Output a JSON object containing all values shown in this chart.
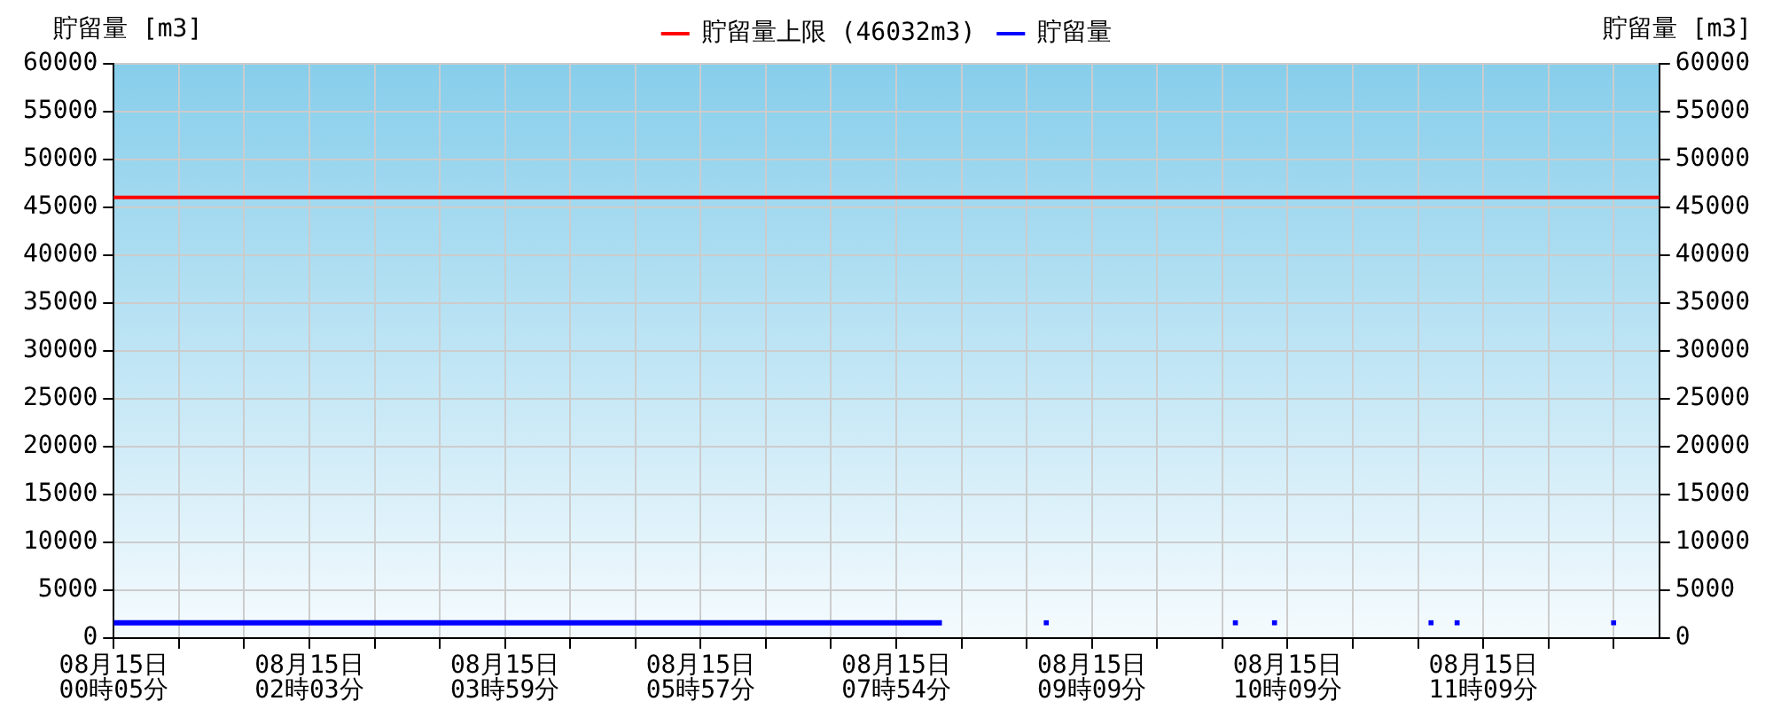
{
  "chart_data": {
    "type": "line",
    "categories": [
      "08月15日\n00時05分",
      null,
      null,
      null,
      null,
      null,
      null,
      null,
      null,
      null,
      null,
      null,
      null,
      null,
      null,
      null,
      null,
      null,
      null,
      null,
      null,
      null,
      null,
      null,
      null,
      null,
      null,
      null,
      null,
      null,
      "08月15日\n02時03分",
      null,
      null,
      null,
      null,
      null,
      null,
      null,
      null,
      null,
      null,
      null,
      null,
      null,
      null,
      null,
      null,
      null,
      null,
      null,
      null,
      null,
      null,
      null,
      null,
      null,
      null,
      null,
      null,
      null,
      "08月15日\n03時59分",
      null,
      null,
      null,
      null,
      null,
      null,
      null,
      null,
      null,
      null,
      null,
      null,
      null,
      null,
      null,
      null,
      null,
      null,
      null,
      null,
      null,
      null,
      null,
      null,
      null,
      null,
      null,
      null,
      null,
      "08月15日\n05時57分",
      null,
      null,
      null,
      null,
      null,
      null,
      null,
      null,
      null,
      null,
      null,
      null,
      null,
      null,
      null,
      null,
      null,
      null,
      null,
      null,
      null,
      null,
      null,
      null,
      null,
      null,
      null,
      null,
      null,
      "08月15日\n07時54分",
      null,
      null,
      null,
      null,
      null,
      null,
      null,
      null,
      null,
      null,
      null,
      null,
      null,
      null,
      null,
      null,
      null,
      null,
      null,
      null,
      null,
      null,
      null,
      null,
      null,
      null,
      null,
      null,
      null,
      "08月15日\n09時09分",
      null,
      null,
      null,
      null,
      null,
      null,
      null,
      null,
      null,
      null,
      null,
      null,
      null,
      null,
      null,
      null,
      null,
      null,
      null,
      null,
      null,
      null,
      null,
      null,
      null,
      null,
      null,
      null,
      null,
      "08月15日\n10時09分",
      null,
      null,
      null,
      null,
      null,
      null,
      null,
      null,
      null,
      null,
      null,
      null,
      null,
      null,
      null,
      null,
      null,
      null,
      null,
      null,
      null,
      null,
      null,
      null,
      null,
      null,
      null,
      null,
      null,
      "08月15日\n11時09分",
      null,
      null,
      null,
      null,
      null,
      null,
      null,
      null,
      null,
      null,
      null,
      null,
      null,
      null,
      null,
      null,
      null,
      null,
      null,
      null,
      null,
      null,
      null,
      null,
      null,
      null,
      null
    ],
    "series": [
      {
        "name": "貯留量",
        "color": "#0000ff",
        "values": [
          1600,
          1600,
          1600,
          1600,
          1600,
          1600,
          1600,
          1600,
          1600,
          1600,
          1600,
          1600,
          1600,
          1600,
          1600,
          1600,
          1600,
          1600,
          1600,
          1600,
          1600,
          1600,
          1600,
          1600,
          1600,
          1600,
          1600,
          1600,
          1600,
          1600,
          1600,
          1600,
          1600,
          1600,
          1600,
          1600,
          1600,
          1600,
          1600,
          1600,
          1600,
          1600,
          1600,
          1600,
          1600,
          1600,
          1600,
          1600,
          1600,
          1600,
          1600,
          1600,
          1600,
          1600,
          1600,
          1600,
          1600,
          1600,
          1600,
          1600,
          1600,
          1600,
          1600,
          1600,
          1600,
          1600,
          1600,
          1600,
          1600,
          1600,
          1600,
          1600,
          1600,
          1600,
          1600,
          1600,
          1600,
          1600,
          1600,
          1600,
          1600,
          1600,
          1600,
          1600,
          1600,
          1600,
          1600,
          1600,
          1600,
          1600,
          1600,
          1600,
          1600,
          1600,
          1600,
          1600,
          1600,
          1600,
          1600,
          1600,
          1600,
          1600,
          1600,
          1600,
          1600,
          1600,
          1600,
          1600,
          1600,
          1600,
          1600,
          1600,
          1600,
          1600,
          1600,
          1600,
          1600,
          1600,
          1600,
          1600,
          1600,
          1600,
          1600,
          1600,
          1600,
          1600,
          1600,
          1600,
          null,
          null,
          null,
          null,
          null,
          null,
          null,
          null,
          null,
          null,
          null,
          null,
          null,
          null,
          null,
          null,
          null,
          null,
          null,
          null,
          null,
          null,
          null,
          null,
          null,
          null,
          null,
          null,
          null,
          null,
          null,
          null,
          null,
          null,
          null,
          null,
          null,
          null,
          null,
          null,
          null,
          null,
          null,
          null,
          null,
          null,
          null,
          null,
          null,
          null,
          null,
          null,
          null,
          null,
          null,
          null,
          null,
          null,
          null,
          null,
          null,
          null,
          null,
          null,
          null,
          null,
          null,
          null,
          null,
          null,
          null,
          null,
          null,
          null,
          null,
          null,
          null,
          null,
          null,
          null,
          null,
          null,
          null,
          null,
          null,
          null,
          null,
          null,
          null,
          null,
          null,
          null,
          null,
          null,
          null,
          null,
          null,
          null,
          null,
          null,
          null,
          null,
          null,
          null,
          null,
          null,
          null,
          null,
          null,
          null
        ]
      },
      {
        "type": "scatter",
        "marker": "square",
        "color": "#0000ff",
        "values": [
          null,
          null,
          null,
          null,
          null,
          null,
          null,
          null,
          null,
          null,
          null,
          null,
          null,
          null,
          null,
          null,
          null,
          null,
          null,
          null,
          null,
          null,
          null,
          null,
          null,
          null,
          null,
          null,
          null,
          null,
          null,
          null,
          null,
          null,
          null,
          null,
          null,
          null,
          null,
          null,
          null,
          null,
          null,
          null,
          null,
          null,
          null,
          null,
          null,
          null,
          null,
          null,
          null,
          null,
          null,
          null,
          null,
          null,
          null,
          null,
          null,
          null,
          null,
          null,
          null,
          null,
          null,
          null,
          null,
          null,
          null,
          null,
          null,
          null,
          null,
          null,
          null,
          null,
          null,
          null,
          null,
          null,
          null,
          null,
          null,
          null,
          null,
          null,
          null,
          null,
          null,
          null,
          null,
          null,
          null,
          null,
          null,
          null,
          null,
          null,
          null,
          null,
          null,
          null,
          null,
          null,
          null,
          null,
          null,
          null,
          null,
          null,
          null,
          null,
          null,
          null,
          null,
          null,
          null,
          null,
          null,
          null,
          null,
          null,
          null,
          null,
          null,
          null,
          null,
          null,
          null,
          null,
          null,
          null,
          null,
          null,
          null,
          null,
          null,
          null,
          null,
          null,
          null,
          1600,
          null,
          null,
          null,
          null,
          null,
          null,
          null,
          null,
          null,
          null,
          null,
          null,
          null,
          null,
          null,
          null,
          null,
          null,
          null,
          null,
          null,
          null,
          null,
          null,
          null,
          null,
          null,
          null,
          1600,
          null,
          null,
          null,
          null,
          null,
          1600,
          null,
          null,
          null,
          null,
          null,
          null,
          null,
          null,
          null,
          null,
          null,
          null,
          null,
          null,
          null,
          null,
          null,
          null,
          null,
          null,
          null,
          null,
          null,
          1600,
          null,
          null,
          null,
          1600,
          null,
          null,
          null,
          null,
          null,
          null,
          null,
          null,
          null,
          null,
          null,
          null,
          null,
          null,
          null,
          null,
          null,
          null,
          null,
          null,
          null,
          null,
          null,
          1600,
          null,
          null,
          null,
          null,
          null,
          null,
          null
        ]
      }
    ],
    "ref_lines": [
      {
        "axis": "y",
        "value": 46032,
        "label": "貯留量上限 (46032m3)",
        "color": "#ff0000"
      }
    ],
    "ylabel": "貯留量 [m3]",
    "y2label": "貯留量 [m3]",
    "ylim": [
      0,
      60000
    ],
    "yticks": [
      0,
      5000,
      10000,
      15000,
      20000,
      25000,
      30000,
      35000,
      40000,
      45000,
      50000,
      55000,
      60000
    ],
    "y2lim": [
      0,
      60000
    ],
    "y2ticks": [
      0,
      5000,
      10000,
      15000,
      20000,
      25000,
      30000,
      35000,
      40000,
      45000,
      50000,
      55000,
      60000
    ],
    "grid": true,
    "legend": "top"
  }
}
